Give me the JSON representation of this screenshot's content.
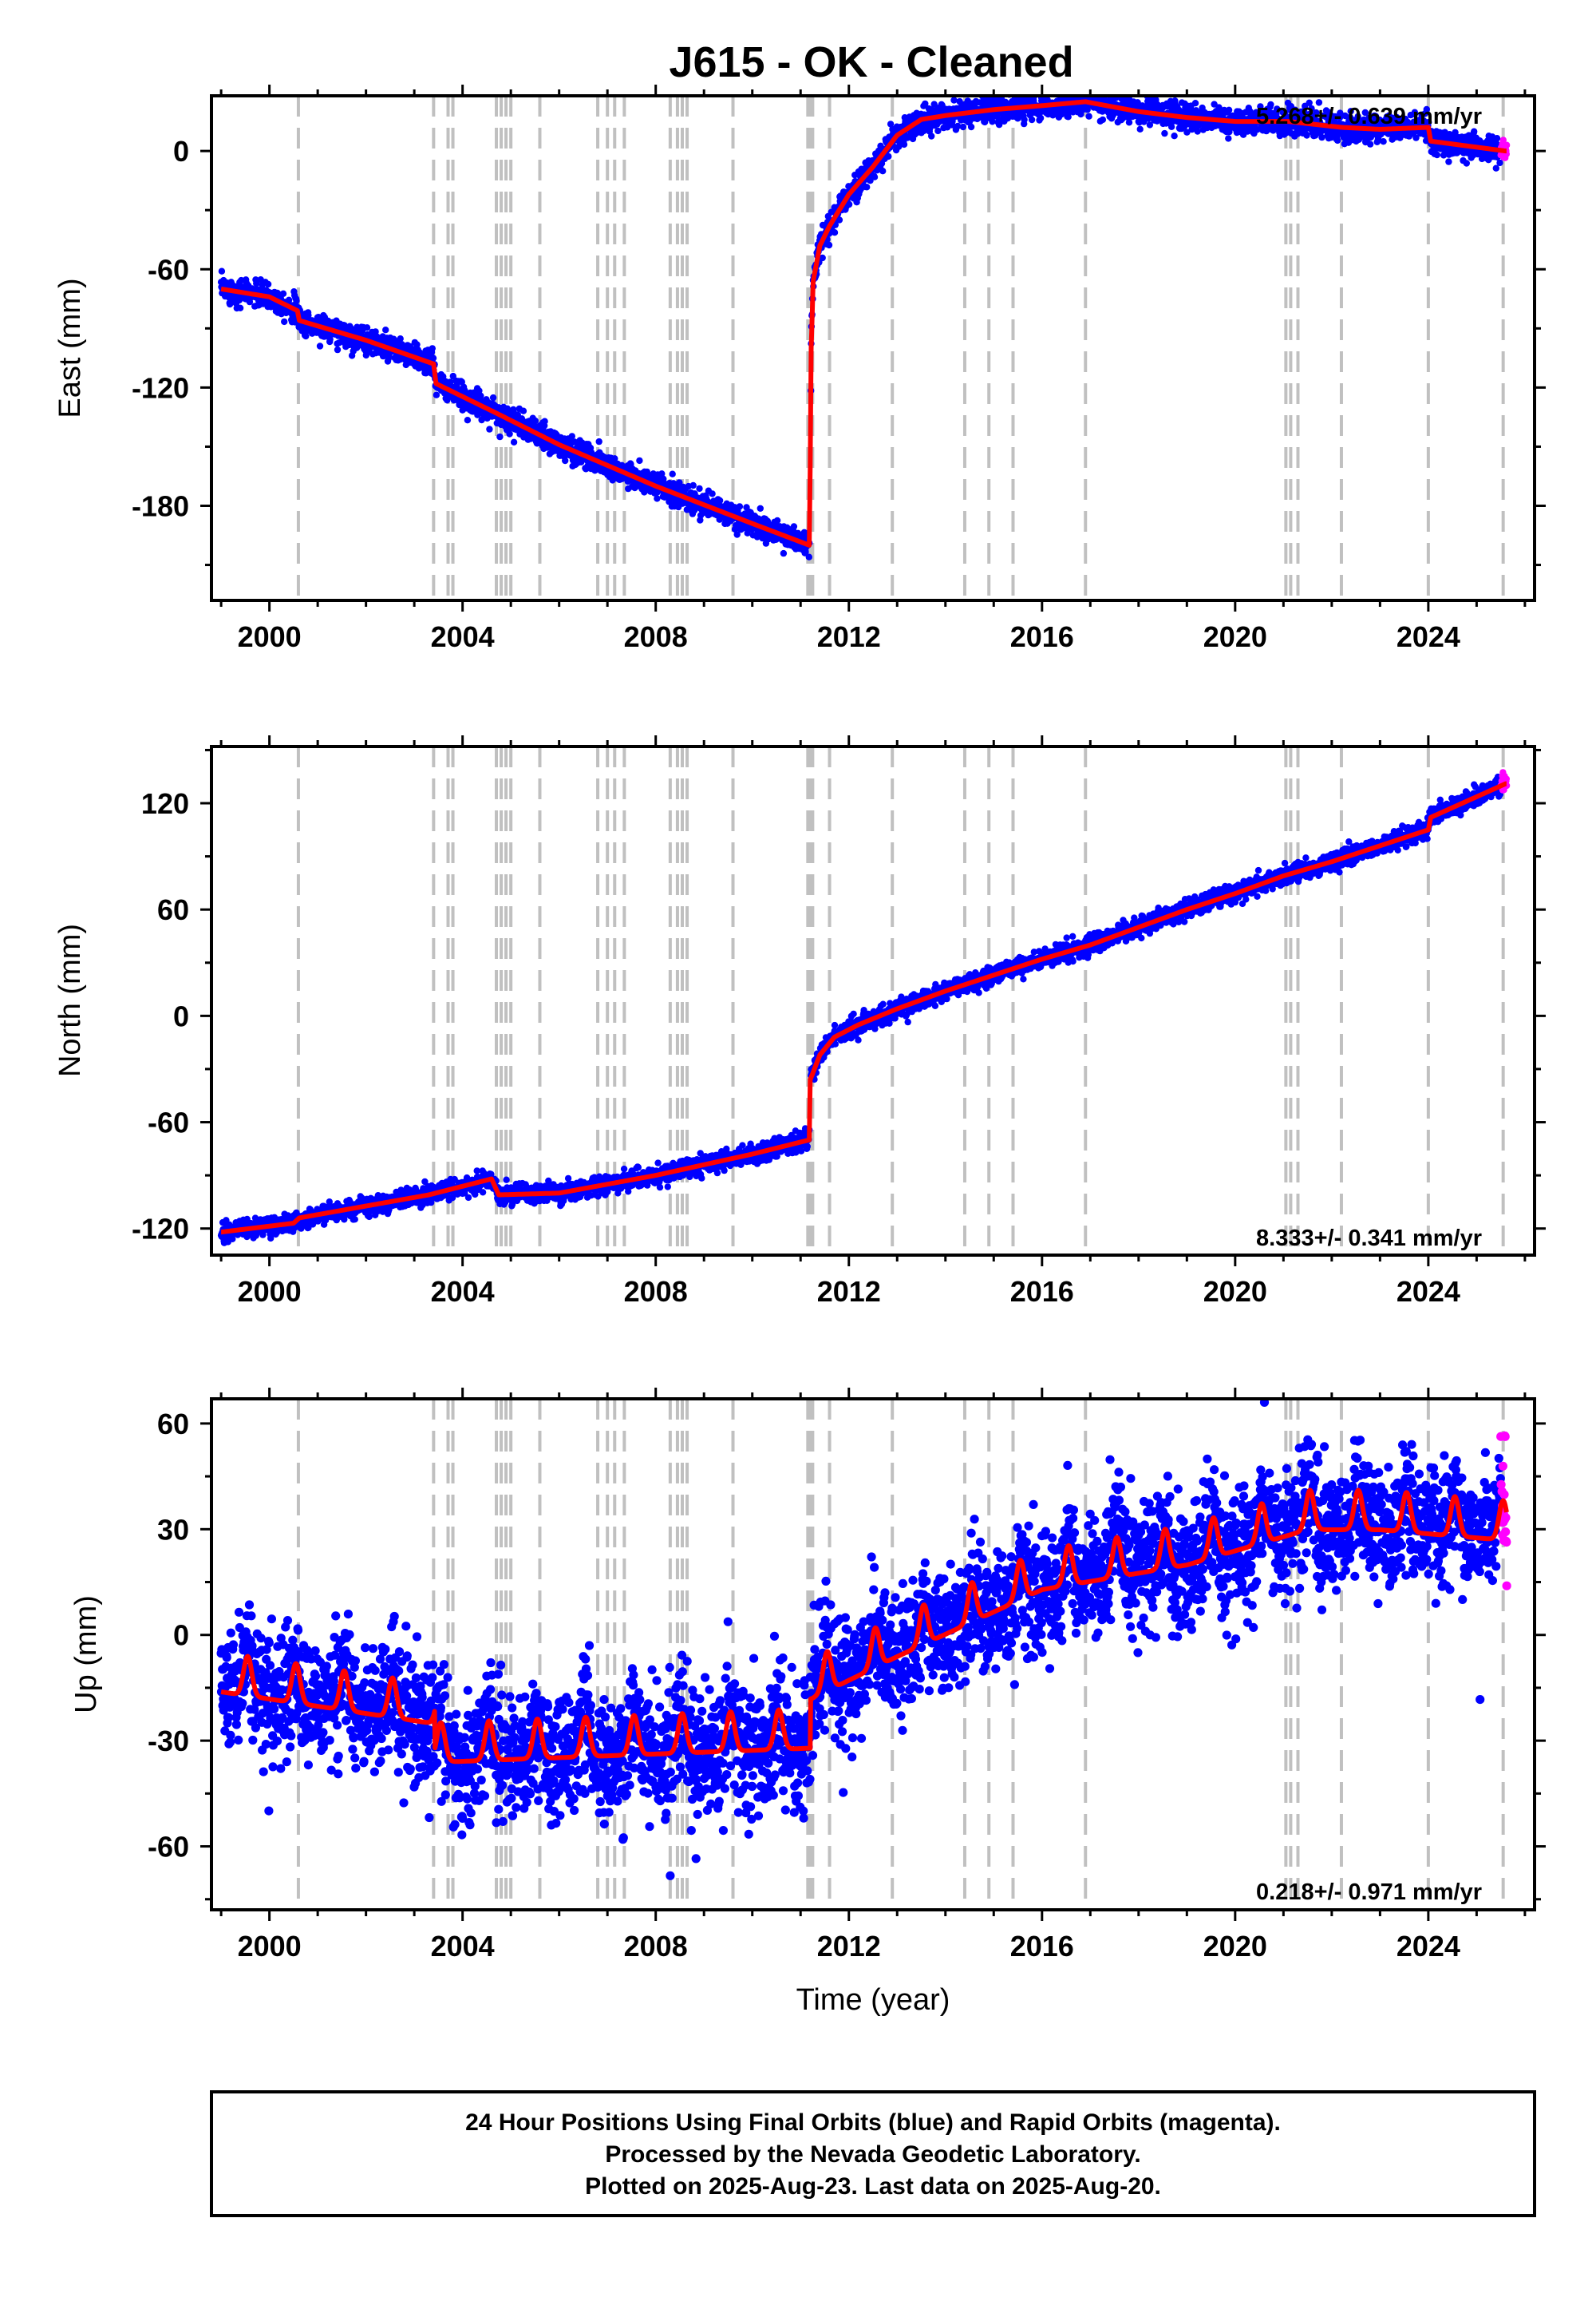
{
  "title": "J615  - OK - Cleaned",
  "x_label": "Time (year)",
  "caption": [
    "24 Hour Positions Using Final Orbits (blue) and Rapid Orbits (magenta).",
    "Processed by the Nevada Geodetic Laboratory.",
    "Plotted on 2025-Aug-23. Last data on 2025-Aug-20."
  ],
  "colors": {
    "final": "#0000ff",
    "rapid": "#ff00ff",
    "model": "#ff0000",
    "steps": "#c0c0c0"
  },
  "chart_data": [
    {
      "type": "scatter",
      "name": "east",
      "ylabel": "East (mm)",
      "rate_label": "5.268+/- 0.639 mm/yr",
      "xlim": [
        1998.8,
        2026.2
      ],
      "ylim": [
        -228,
        28
      ],
      "yticks": [
        "-180",
        "-120",
        "-60",
        "0"
      ],
      "xticks": [
        "2000",
        "2004",
        "2008",
        "2012",
        "2016",
        "2020",
        "2024"
      ],
      "grid": false
    },
    {
      "type": "scatter",
      "name": "north",
      "ylabel": "North (mm)",
      "rate_label": "8.333+/- 0.341 mm/yr",
      "xlim": [
        1998.8,
        2026.2
      ],
      "ylim": [
        -135,
        152
      ],
      "yticks": [
        "-120",
        "-60",
        "0",
        "60",
        "120"
      ],
      "xticks": [
        "2000",
        "2004",
        "2008",
        "2012",
        "2016",
        "2020",
        "2024"
      ],
      "grid": false
    },
    {
      "type": "scatter",
      "name": "up",
      "ylabel": "Up (mm)",
      "rate_label": "0.218+/- 0.971 mm/yr",
      "xlim": [
        1998.8,
        2026.2
      ],
      "ylim": [
        -78,
        67
      ],
      "yticks": [
        "-60",
        "-30",
        "0",
        "30",
        "60"
      ],
      "xticks": [
        "2000",
        "2004",
        "2008",
        "2012",
        "2016",
        "2020",
        "2024"
      ],
      "grid": false
    }
  ],
  "step_epochs": [
    2000.6,
    2003.4,
    2003.7,
    2003.8,
    2004.7,
    2004.8,
    2004.9,
    2005.0,
    2005.6,
    2006.8,
    2007.0,
    2007.15,
    2007.35,
    2008.3,
    2008.45,
    2008.55,
    2008.65,
    2009.6,
    2011.15,
    2011.2,
    2011.25,
    2011.6,
    2012.9,
    2014.4,
    2014.9,
    2015.4,
    2016.9,
    2021.05,
    2021.15,
    2021.3,
    2022.2,
    2024.0,
    2025.55
  ],
  "east_model": [
    [
      1999.0,
      -70
    ],
    [
      2000.0,
      -74
    ],
    [
      2000.58,
      -81
    ],
    [
      2000.62,
      -86
    ],
    [
      2002.0,
      -96
    ],
    [
      2003.4,
      -108
    ],
    [
      2003.45,
      -118
    ],
    [
      2004.7,
      -133
    ],
    [
      2006.0,
      -149
    ],
    [
      2008.0,
      -170
    ],
    [
      2010.0,
      -189
    ],
    [
      2011.18,
      -200
    ],
    [
      2011.2,
      -160
    ],
    [
      2011.22,
      -100
    ],
    [
      2011.26,
      -66
    ],
    [
      2011.4,
      -48
    ],
    [
      2011.6,
      -38
    ],
    [
      2012.0,
      -22
    ],
    [
      2012.5,
      -8
    ],
    [
      2013.0,
      8
    ],
    [
      2013.5,
      16
    ],
    [
      2014.0,
      18
    ],
    [
      2015.0,
      21
    ],
    [
      2016.0,
      23
    ],
    [
      2016.9,
      25
    ],
    [
      2018.0,
      20
    ],
    [
      2019.0,
      17
    ],
    [
      2020.0,
      15
    ],
    [
      2021.1,
      15
    ],
    [
      2022.2,
      12
    ],
    [
      2023.0,
      11
    ],
    [
      2024.0,
      12
    ],
    [
      2024.05,
      5
    ],
    [
      2025.6,
      0
    ]
  ],
  "north_model": [
    [
      1999.0,
      -122
    ],
    [
      2000.5,
      -117
    ],
    [
      2000.62,
      -114
    ],
    [
      2003.3,
      -101
    ],
    [
      2004.6,
      -92
    ],
    [
      2004.75,
      -101
    ],
    [
      2006.0,
      -100
    ],
    [
      2008.0,
      -90
    ],
    [
      2010.0,
      -78
    ],
    [
      2011.18,
      -70
    ],
    [
      2011.2,
      -36
    ],
    [
      2011.4,
      -22
    ],
    [
      2011.7,
      -12
    ],
    [
      2012.2,
      -5
    ],
    [
      2013.0,
      4
    ],
    [
      2014.0,
      14
    ],
    [
      2015.0,
      23
    ],
    [
      2016.0,
      32
    ],
    [
      2017.0,
      40
    ],
    [
      2018.0,
      50
    ],
    [
      2019.0,
      60
    ],
    [
      2020.0,
      69
    ],
    [
      2021.0,
      79
    ],
    [
      2022.0,
      87
    ],
    [
      2023.0,
      96
    ],
    [
      2024.0,
      105
    ],
    [
      2024.05,
      112
    ],
    [
      2025.6,
      131
    ]
  ],
  "up_model": {
    "pre": [
      [
        1999.0,
        -13
      ],
      [
        2003.4,
        -22
      ]
    ],
    "mid": [
      [
        2003.45,
        -33
      ],
      [
        2011.18,
        -29
      ]
    ],
    "post": [
      [
        2011.22,
        -15
      ],
      [
        2013.0,
        -3
      ],
      [
        2016.0,
        16
      ],
      [
        2019.0,
        23
      ],
      [
        2021.5,
        33
      ],
      [
        2023.0,
        33
      ],
      [
        2025.6,
        30
      ]
    ],
    "amp": 7
  }
}
